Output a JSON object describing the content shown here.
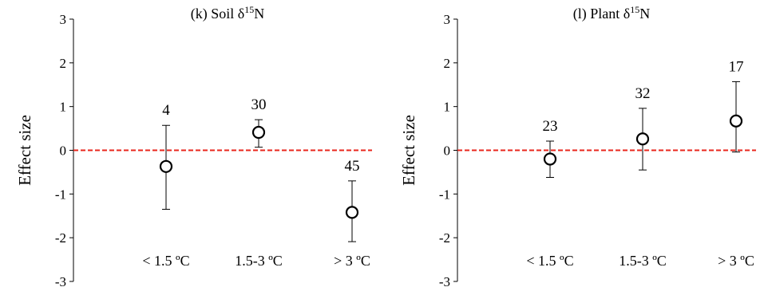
{
  "chart_data": [
    {
      "type": "scatter",
      "title_prefix": "(k) Soil δ",
      "title_sup": "15",
      "title_suffix": "N",
      "ylabel": "Effect size",
      "xlabel": "",
      "ylim": [
        -3,
        3
      ],
      "yticks": [
        "3",
        "2",
        "1",
        "0",
        "-1",
        "-2",
        "-3"
      ],
      "categories": [
        "< 1.5 ºC",
        "1.5-3 ºC",
        "> 3 ºC"
      ],
      "values": [
        -0.37,
        0.41,
        -1.42
      ],
      "ci_low": [
        -1.35,
        0.07,
        -2.09
      ],
      "ci_high": [
        0.57,
        0.7,
        -0.7
      ],
      "n": [
        "4",
        "30",
        "45"
      ],
      "reference_line": 0,
      "reference_color": "#e8261c",
      "grid": false
    },
    {
      "type": "scatter",
      "title_prefix": "(l) Plant δ",
      "title_sup": "15",
      "title_suffix": "N",
      "ylabel": "Effect size",
      "xlabel": "",
      "ylim": [
        -3,
        3
      ],
      "yticks": [
        "3",
        "2",
        "1",
        "0",
        "-1",
        "-2",
        "-3"
      ],
      "categories": [
        "< 1.5 ºC",
        "1.5-3 ºC",
        "> 3 ºC"
      ],
      "values": [
        -0.2,
        0.26,
        0.67
      ],
      "ci_low": [
        -0.62,
        -0.45,
        -0.04
      ],
      "ci_high": [
        0.21,
        0.96,
        1.57
      ],
      "n": [
        "23",
        "32",
        "17"
      ],
      "reference_line": 0,
      "reference_color": "#e8261c",
      "grid": false
    }
  ]
}
